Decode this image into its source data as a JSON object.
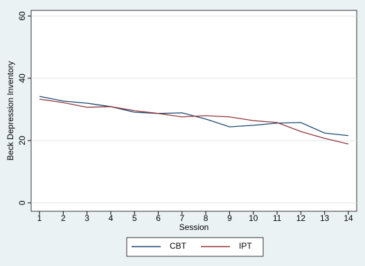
{
  "chart_data": {
    "type": "line",
    "x_label": "Session",
    "y_label": "Beck Depression Inventory",
    "x": [
      1,
      2,
      3,
      4,
      5,
      6,
      7,
      8,
      9,
      10,
      11,
      12,
      13,
      14
    ],
    "series": [
      {
        "name": "CBT",
        "color": "#1a476f",
        "values": [
          34.2,
          32.7,
          32.0,
          30.9,
          29.1,
          28.7,
          28.9,
          26.9,
          24.4,
          24.9,
          25.6,
          25.8,
          22.4,
          21.6
        ]
      },
      {
        "name": "IPT",
        "color": "#90353b",
        "values": [
          33.3,
          32.2,
          30.7,
          30.9,
          29.6,
          28.7,
          27.6,
          28.0,
          27.6,
          26.4,
          25.8,
          22.9,
          20.7,
          18.9
        ]
      }
    ],
    "xlim": [
      0.65,
      14.35
    ],
    "xticks": [
      1,
      2,
      3,
      4,
      5,
      6,
      7,
      8,
      9,
      10,
      11,
      12,
      13,
      14
    ],
    "ylim": [
      -2.7,
      61.8
    ],
    "yticks": [
      0,
      20,
      40,
      60
    ],
    "grid": true
  }
}
